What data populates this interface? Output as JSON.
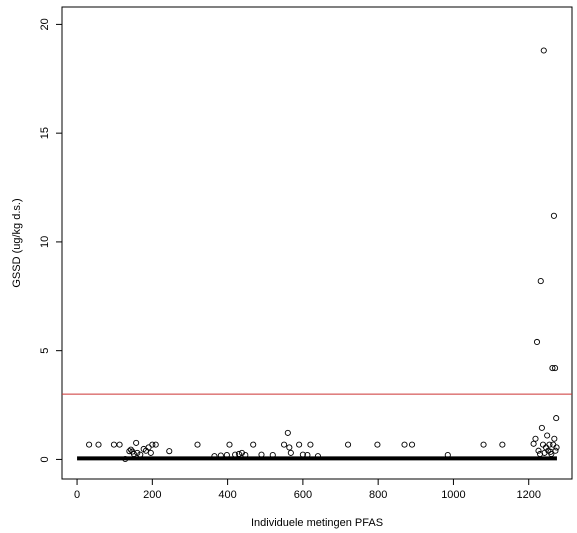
{
  "chart_data": {
    "type": "scatter",
    "title": "",
    "xlabel": "Individuele metingen PFAS",
    "ylabel": "GSSD (ug/kg d.s.)",
    "xlim": [
      -40,
      1315
    ],
    "ylim": [
      -0.9,
      20.8
    ],
    "x_ticks": [
      0,
      200,
      400,
      600,
      800,
      1000,
      1200
    ],
    "y_ticks": [
      0,
      5,
      10,
      15,
      20
    ],
    "grid": false,
    "marker": "open-circle",
    "point_color": "#000000",
    "threshold": {
      "y": 3.0,
      "color": "#cc3333"
    },
    "baseline_segment": {
      "x_from": 0,
      "x_to": 1275,
      "y": 0.05
    },
    "points": [
      [
        32,
        0.68
      ],
      [
        57,
        0.68
      ],
      [
        98,
        0.68
      ],
      [
        113,
        0.68
      ],
      [
        128,
        0.02
      ],
      [
        139,
        0.38
      ],
      [
        143,
        0.45
      ],
      [
        147,
        0.36
      ],
      [
        151,
        0.25
      ],
      [
        157,
        0.76
      ],
      [
        160,
        0.3
      ],
      [
        168,
        0.22
      ],
      [
        177,
        0.48
      ],
      [
        183,
        0.4
      ],
      [
        190,
        0.55
      ],
      [
        196,
        0.3
      ],
      [
        200,
        0.68
      ],
      [
        209,
        0.68
      ],
      [
        245,
        0.38
      ],
      [
        320,
        0.68
      ],
      [
        365,
        0.15
      ],
      [
        382,
        0.18
      ],
      [
        398,
        0.2
      ],
      [
        405,
        0.68
      ],
      [
        420,
        0.22
      ],
      [
        430,
        0.25
      ],
      [
        438,
        0.3
      ],
      [
        447,
        0.2
      ],
      [
        468,
        0.68
      ],
      [
        490,
        0.22
      ],
      [
        520,
        0.2
      ],
      [
        550,
        0.68
      ],
      [
        560,
        1.22
      ],
      [
        564,
        0.55
      ],
      [
        568,
        0.3
      ],
      [
        590,
        0.68
      ],
      [
        600,
        0.22
      ],
      [
        612,
        0.2
      ],
      [
        620,
        0.68
      ],
      [
        640,
        0.15
      ],
      [
        720,
        0.68
      ],
      [
        798,
        0.68
      ],
      [
        870,
        0.68
      ],
      [
        890,
        0.68
      ],
      [
        985,
        0.2
      ],
      [
        1080,
        0.68
      ],
      [
        1130,
        0.68
      ],
      [
        1213,
        0.72
      ],
      [
        1218,
        0.95
      ],
      [
        1222,
        5.4
      ],
      [
        1226,
        0.4
      ],
      [
        1230,
        0.25
      ],
      [
        1232,
        8.2
      ],
      [
        1235,
        1.45
      ],
      [
        1238,
        0.68
      ],
      [
        1240,
        18.8
      ],
      [
        1242,
        0.3
      ],
      [
        1246,
        0.55
      ],
      [
        1249,
        1.1
      ],
      [
        1252,
        0.4
      ],
      [
        1255,
        0.68
      ],
      [
        1258,
        0.35
      ],
      [
        1260,
        0.25
      ],
      [
        1263,
        4.2
      ],
      [
        1265,
        0.68
      ],
      [
        1267,
        11.2
      ],
      [
        1268,
        0.95
      ],
      [
        1270,
        4.2
      ],
      [
        1271,
        0.4
      ],
      [
        1273,
        1.9
      ],
      [
        1274,
        0.55
      ]
    ]
  }
}
